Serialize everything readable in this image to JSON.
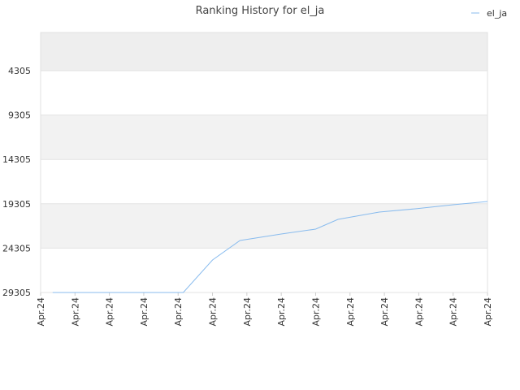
{
  "chart_data": {
    "type": "line",
    "title": "Ranking History for el_ja",
    "x": [
      0.35,
      4.15,
      5.0,
      5.8,
      7.0,
      8.0,
      8.65,
      9.85,
      10.9,
      12.0,
      13.0
    ],
    "series": [
      {
        "name": "el_ja",
        "color": "#88bbee",
        "values": [
          29305,
          29305,
          25642,
          23444,
          22711,
          22162,
          21063,
          20239,
          19872,
          19414,
          19048
        ]
      }
    ],
    "xlim": [
      0,
      13
    ],
    "xticks": [
      {
        "value": 0,
        "label": "Apr.24"
      },
      {
        "value": 1,
        "label": "Apr.24"
      },
      {
        "value": 2,
        "label": "Apr.24"
      },
      {
        "value": 3,
        "label": "Apr.24"
      },
      {
        "value": 4,
        "label": "Apr.24"
      },
      {
        "value": 5,
        "label": "Apr.24"
      },
      {
        "value": 6,
        "label": "Apr.24"
      },
      {
        "value": 7,
        "label": "Apr.24"
      },
      {
        "value": 8,
        "label": "Apr.24"
      },
      {
        "value": 9,
        "label": "Apr.24"
      },
      {
        "value": 10,
        "label": "Apr.24"
      },
      {
        "value": 11,
        "label": "Apr.24"
      },
      {
        "value": 12,
        "label": "Apr.24"
      },
      {
        "value": 13,
        "label": "Apr.24"
      }
    ],
    "ylim": [
      29305,
      0
    ],
    "yticks": [
      4305,
      9305,
      14305,
      19305,
      24305,
      29305
    ],
    "grid": true,
    "legend": "top-right"
  }
}
